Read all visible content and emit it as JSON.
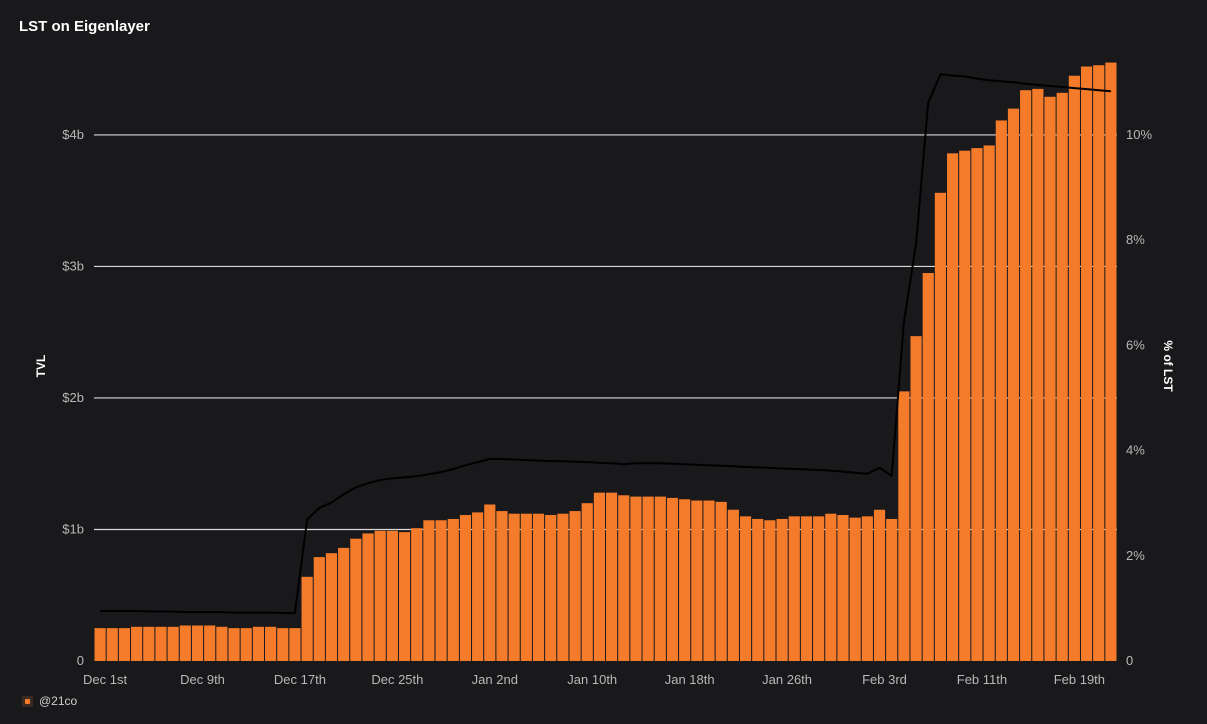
{
  "chart_data": {
    "type": "bar",
    "title": "LST on Eigenlayer",
    "ylabel": "TVL",
    "y2label": "% of LST",
    "ylim": [
      0,
      4.6
    ],
    "y2lim": [
      0,
      11.5
    ],
    "yticks": [
      {
        "v": 0,
        "label": "0"
      },
      {
        "v": 1,
        "label": "$1b"
      },
      {
        "v": 2,
        "label": "$2b"
      },
      {
        "v": 3,
        "label": "$3b"
      },
      {
        "v": 4,
        "label": "$4b"
      }
    ],
    "y2ticks": [
      {
        "v": 0,
        "label": "0"
      },
      {
        "v": 2,
        "label": "2%"
      },
      {
        "v": 4,
        "label": "4%"
      },
      {
        "v": 6,
        "label": "6%"
      },
      {
        "v": 8,
        "label": "8%"
      },
      {
        "v": 10,
        "label": "10%"
      }
    ],
    "xticks": [
      {
        "i": 0,
        "label": "Dec 1st"
      },
      {
        "i": 8,
        "label": "Dec 9th"
      },
      {
        "i": 16,
        "label": "Dec 17th"
      },
      {
        "i": 24,
        "label": "Dec 25th"
      },
      {
        "i": 32,
        "label": "Jan 2nd"
      },
      {
        "i": 40,
        "label": "Jan 10th"
      },
      {
        "i": 48,
        "label": "Jan 18th"
      },
      {
        "i": 56,
        "label": "Jan 26th"
      },
      {
        "i": 64,
        "label": "Feb 3rd"
      },
      {
        "i": 72,
        "label": "Feb 11th"
      },
      {
        "i": 80,
        "label": "Feb 19th"
      }
    ],
    "grid": true,
    "bar_color": "#f47b2a",
    "line_color": "#000000",
    "series": [
      {
        "axis": "left",
        "values": [
          0.25,
          0.25,
          0.25,
          0.26,
          0.26,
          0.26,
          0.26,
          0.27,
          0.27,
          0.27,
          0.26,
          0.25,
          0.25,
          0.26,
          0.26,
          0.25,
          0.25,
          0.64,
          0.79,
          0.82,
          0.86,
          0.93,
          0.97,
          0.99,
          0.99,
          0.98,
          1.01,
          1.07,
          1.07,
          1.08,
          1.11,
          1.13,
          1.19,
          1.14,
          1.12,
          1.12,
          1.12,
          1.11,
          1.12,
          1.14,
          1.2,
          1.28,
          1.28,
          1.26,
          1.25,
          1.25,
          1.25,
          1.24,
          1.23,
          1.22,
          1.22,
          1.21,
          1.15,
          1.1,
          1.08,
          1.07,
          1.08,
          1.1,
          1.1,
          1.1,
          1.12,
          1.11,
          1.09,
          1.1,
          1.15,
          1.08,
          2.05,
          2.47,
          2.95,
          3.56,
          3.86,
          3.88,
          3.9,
          3.92,
          4.11,
          4.2,
          4.34,
          4.35,
          4.29,
          4.32,
          4.45,
          4.52,
          4.53,
          4.55
        ]
      },
      {
        "axis": "right",
        "values": [
          0.95,
          0.95,
          0.95,
          0.95,
          0.94,
          0.94,
          0.94,
          0.93,
          0.93,
          0.93,
          0.93,
          0.92,
          0.92,
          0.92,
          0.92,
          0.91,
          0.91,
          2.69,
          2.91,
          3.01,
          3.17,
          3.3,
          3.38,
          3.44,
          3.47,
          3.49,
          3.51,
          3.55,
          3.59,
          3.65,
          3.72,
          3.78,
          3.84,
          3.84,
          3.83,
          3.82,
          3.81,
          3.8,
          3.8,
          3.79,
          3.78,
          3.77,
          3.76,
          3.74,
          3.76,
          3.76,
          3.76,
          3.75,
          3.74,
          3.73,
          3.72,
          3.71,
          3.7,
          3.69,
          3.68,
          3.67,
          3.66,
          3.65,
          3.64,
          3.63,
          3.62,
          3.6,
          3.58,
          3.56,
          3.67,
          3.52,
          6.44,
          7.94,
          10.61,
          11.15,
          11.13,
          11.11,
          11.07,
          11.04,
          11.02,
          11.0,
          10.97,
          10.95,
          10.93,
          10.91,
          10.89,
          10.87,
          10.85,
          10.83
        ]
      }
    ]
  },
  "footer": {
    "brand": "@21co"
  }
}
